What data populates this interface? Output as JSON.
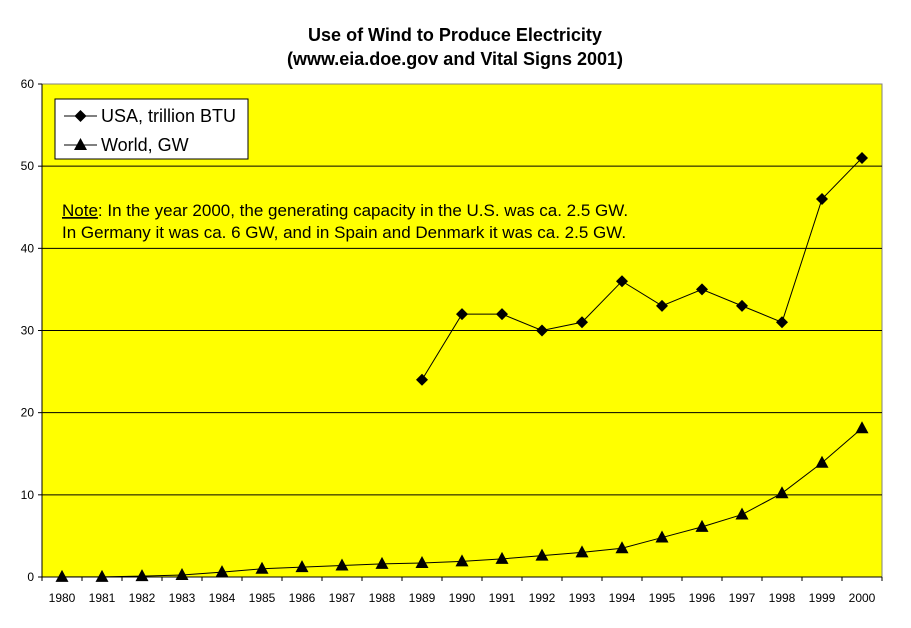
{
  "chart_data": {
    "type": "line",
    "title": "Use of Wind to Produce Electricity",
    "subtitle": "(www.eia.doe.gov and Vital Signs 2001)",
    "xlabel": "",
    "ylabel": "",
    "x": [
      1980,
      1981,
      1982,
      1983,
      1984,
      1985,
      1986,
      1987,
      1988,
      1989,
      1990,
      1991,
      1992,
      1993,
      1994,
      1995,
      1996,
      1997,
      1998,
      1999,
      2000
    ],
    "x_tick_labels": [
      "1980",
      "1981",
      "1982",
      "1983",
      "1984",
      "1985",
      "1986",
      "1987",
      "1988",
      "1989",
      "1990",
      "1991",
      "1992",
      "1993",
      "1994",
      "1995",
      "1996",
      "1997",
      "1998",
      "1999",
      "2000"
    ],
    "ylim": [
      0,
      60
    ],
    "y_ticks": [
      0,
      10,
      20,
      30,
      40,
      50,
      60
    ],
    "y_tick_labels": [
      "0",
      "10",
      "20",
      "30",
      "40",
      "50",
      "60"
    ],
    "grid": "horizontal",
    "plot_background": "#FFFF00",
    "series": [
      {
        "name": "USA, trillion BTU",
        "marker": "diamond",
        "color": "#000000",
        "values": [
          null,
          null,
          null,
          null,
          null,
          null,
          null,
          null,
          null,
          24,
          32,
          32,
          30,
          31,
          36,
          33,
          35,
          33,
          31,
          46,
          51
        ]
      },
      {
        "name": "World, GW",
        "marker": "triangle",
        "color": "#000000",
        "values": [
          0.01,
          0.02,
          0.1,
          0.25,
          0.6,
          1.0,
          1.2,
          1.4,
          1.6,
          1.7,
          1.9,
          2.2,
          2.6,
          3.0,
          3.5,
          4.8,
          6.1,
          7.6,
          10.2,
          13.9,
          18.1
        ]
      }
    ],
    "legend": {
      "position": "top-left",
      "entries": [
        "USA, trillion BTU",
        "World, GW"
      ]
    },
    "annotation": {
      "label": "Note",
      "line1": ": In the year 2000, the generating capacity in the U.S. was ca. 2.5 GW.",
      "line2": "In Germany it was ca. 6 GW, and in Spain and Denmark it was ca. 2.5 GW."
    }
  }
}
